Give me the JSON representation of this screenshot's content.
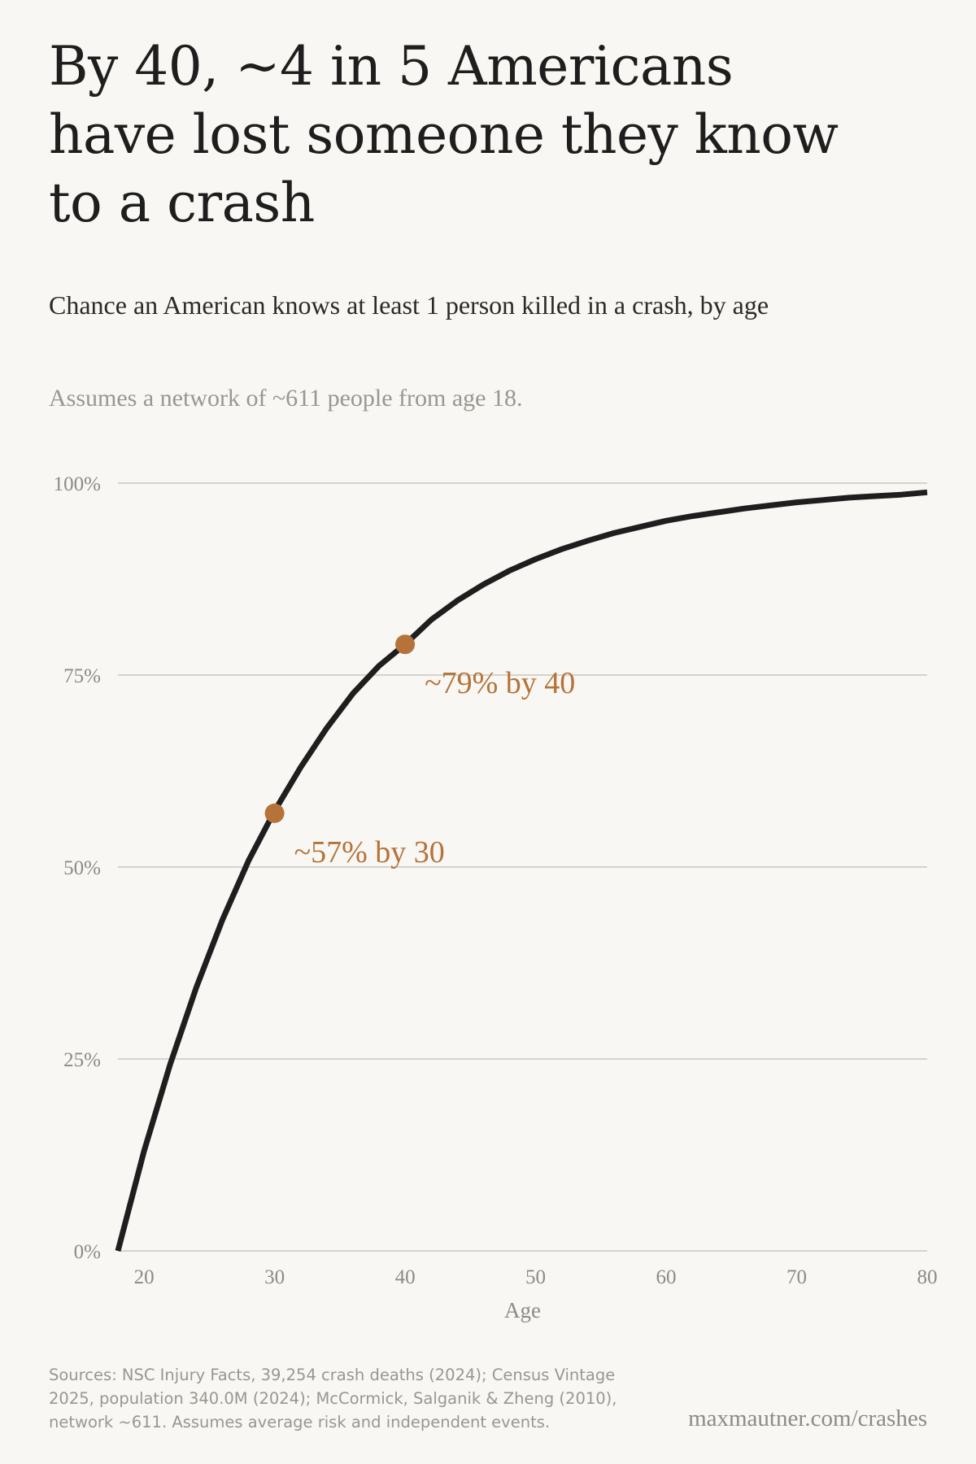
{
  "title": "By 40, ~4 in 5 Americans have lost someone they know to a crash",
  "subtitle": "Chance an American knows at least 1 person killed in a crash, by age",
  "note": "Assumes a network of ~611 people from age 18.",
  "sources": "Sources: NSC Injury Facts, 39,254 crash deaths (2024); Census Vintage 2025, population 340.0M (2024); McCormick, Salganik & Zheng (2010), network ~611. Assumes average risk and independent events.",
  "credit": "maxmautner.com/crashes",
  "colors": {
    "line": "#1e1e1e",
    "accent": "#b5733a",
    "grid": "#d6d3cd"
  },
  "chart_data": {
    "type": "line",
    "xlabel": "Age",
    "ylabel": "",
    "xlim": [
      18,
      80
    ],
    "ylim": [
      0,
      100
    ],
    "x_ticks": [
      20,
      30,
      40,
      50,
      60,
      70,
      80
    ],
    "x_tick_labels": [
      "20",
      "30",
      "40",
      "50",
      "60",
      "70",
      "80"
    ],
    "y_ticks": [
      0,
      25,
      50,
      75,
      100
    ],
    "y_tick_labels": [
      "0%",
      "25%",
      "50%",
      "75%",
      "100%"
    ],
    "grid": true,
    "series": [
      {
        "x": [
          18,
          20,
          22,
          24,
          26,
          28,
          30,
          32,
          34,
          36,
          38,
          40,
          42,
          44,
          46,
          48,
          50,
          52,
          54,
          56,
          58,
          60,
          62,
          64,
          66,
          68,
          70,
          72,
          74,
          76,
          78,
          80
        ],
        "values": [
          0,
          13,
          24.3,
          34.3,
          43.1,
          50.8,
          57.3,
          63,
          68.1,
          72.6,
          76.2,
          79,
          82.2,
          84.7,
          86.8,
          88.6,
          90.1,
          91.4,
          92.5,
          93.5,
          94.3,
          95.1,
          95.7,
          96.2,
          96.7,
          97.1,
          97.5,
          97.8,
          98.1,
          98.3,
          98.5,
          98.8
        ]
      }
    ],
    "annotations": [
      {
        "x": 30,
        "y": 57,
        "label": "~57% by 30"
      },
      {
        "x": 40,
        "y": 79,
        "label": "~79% by 40"
      }
    ]
  }
}
